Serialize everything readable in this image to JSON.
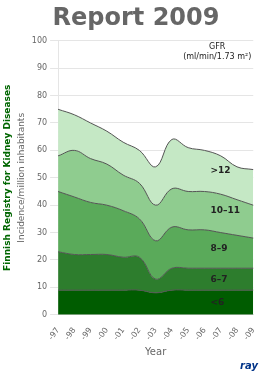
{
  "chart_data": {
    "type": "area",
    "title": "Report 2009",
    "subtitle": "Finnish Registry for Kidney Diseases",
    "xlabel": "Year",
    "ylabel": "Incidence/million inhabitants",
    "categories": [
      "-97",
      "-98",
      "-99",
      "-00",
      "-01",
      "-02",
      "-03",
      "-04",
      "-05",
      "-06",
      "-07",
      "-08",
      "-09"
    ],
    "series": [
      {
        "name": "<6",
        "color": "#005c00",
        "values": [
          9,
          9,
          9,
          9,
          9,
          9,
          8,
          9,
          9,
          9,
          9,
          9,
          9
        ]
      },
      {
        "name": "6–7",
        "color": "#2d7d2d",
        "values": [
          14,
          13,
          13,
          13,
          12,
          12,
          5,
          8,
          8,
          8,
          8,
          8,
          8
        ]
      },
      {
        "name": "8–9",
        "color": "#5aaa5a",
        "values": [
          22,
          21,
          19,
          18,
          17,
          14,
          14,
          15,
          14,
          14,
          13,
          12,
          11
        ]
      },
      {
        "name": "10–11",
        "color": "#8fcc8f",
        "values": [
          13,
          17,
          16,
          15,
          13,
          13,
          13,
          14,
          14,
          14,
          14,
          13,
          12
        ]
      },
      {
        "name": ">12",
        "color": "#c5e8c5",
        "values": [
          17,
          13,
          13,
          12,
          12,
          12,
          14,
          18,
          16,
          15,
          14,
          12,
          13
        ]
      }
    ],
    "stacked": true,
    "ylim": [
      0,
      100
    ],
    "yticks": [
      0,
      10,
      20,
      30,
      40,
      50,
      60,
      70,
      80,
      90,
      100
    ],
    "grid": true,
    "annotations": [
      "GFR\n(ml/min/1.73 m²)",
      "ray"
    ]
  }
}
